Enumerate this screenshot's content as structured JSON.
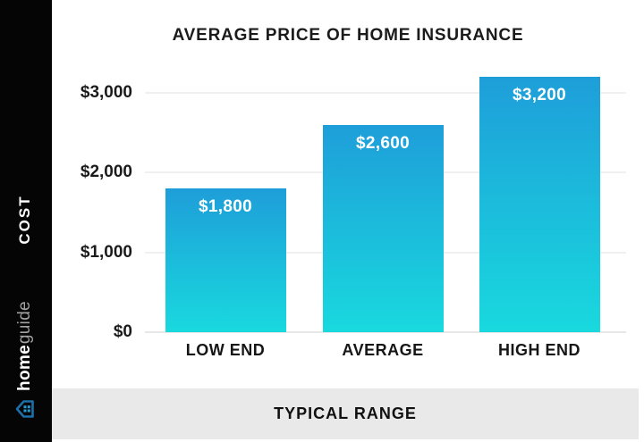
{
  "sidebar": {
    "cost_label": "COST",
    "brand_bold": "home",
    "brand_light": "guide"
  },
  "chart_data": {
    "type": "bar",
    "title": "AVERAGE PRICE OF HOME INSURANCE",
    "categories": [
      "LOW END",
      "AVERAGE",
      "HIGH END"
    ],
    "values": [
      1800,
      2600,
      3200
    ],
    "value_labels": [
      "$1,800",
      "$2,600",
      "$3,200"
    ],
    "y_ticks": [
      {
        "value": 0,
        "label": "$0"
      },
      {
        "value": 1000,
        "label": "$1,000"
      },
      {
        "value": 2000,
        "label": "$2,000"
      },
      {
        "value": 3000,
        "label": "$3,000"
      }
    ],
    "ylim": [
      0,
      3200
    ],
    "grid": true,
    "legend": false,
    "colors": {
      "bar_top": "#1E9ED9",
      "bar_bottom": "#19D9DE"
    }
  },
  "footer": {
    "label": "TYPICAL RANGE"
  },
  "colors": {
    "sidebar_bg": "#050505",
    "footer_bg": "#E9E9E9",
    "icon_outline": "#1D6FA8",
    "icon_dots": "#1E9ED9"
  }
}
